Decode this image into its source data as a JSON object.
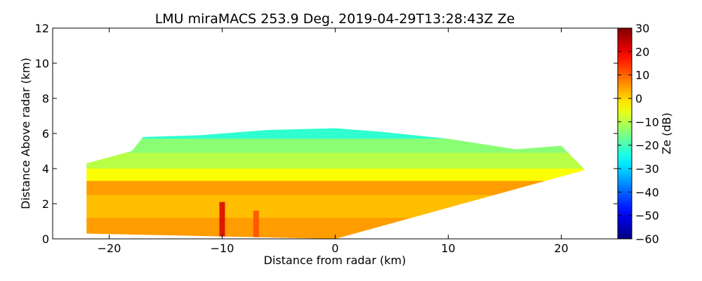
{
  "chart_data": {
    "type": "heatmap",
    "title": "LMU miraMACS 253.9 Deg. 2019-04-29T13:28:43Z  Ze",
    "xlabel": "Distance from radar (km)",
    "ylabel": "Distance Above radar  (km)",
    "xlim": [
      -25,
      25
    ],
    "ylim": [
      0,
      12
    ],
    "x_ticks": [
      -20,
      -10,
      0,
      10,
      20
    ],
    "x_tick_labels": [
      "−20",
      "−10",
      "0",
      "10",
      "20"
    ],
    "y_ticks": [
      0,
      2,
      4,
      6,
      8,
      10,
      12
    ],
    "y_tick_labels": [
      "0",
      "2",
      "4",
      "6",
      "8",
      "10",
      "12"
    ],
    "grid": false,
    "colorbar": {
      "label": "Ze (dB)",
      "colormap": "jet",
      "range": [
        -60,
        30
      ],
      "ticks": [
        30,
        20,
        10,
        0,
        -10,
        -20,
        -30,
        -40,
        -50,
        -60
      ],
      "tick_labels": [
        "30",
        "20",
        "10",
        "0",
        "−10",
        "−20",
        "−30",
        "−40",
        "−50",
        "−60"
      ]
    },
    "echo_region": {
      "x_range_km": [
        -22,
        22
      ],
      "top_height_km": [
        {
          "x": -22,
          "y": 4.3
        },
        {
          "x": -18,
          "y": 5.0
        },
        {
          "x": -17,
          "y": 5.8
        },
        {
          "x": -12,
          "y": 5.9
        },
        {
          "x": -6,
          "y": 6.2
        },
        {
          "x": 0,
          "y": 6.3
        },
        {
          "x": 4,
          "y": 6.1
        },
        {
          "x": 10,
          "y": 5.7
        },
        {
          "x": 16,
          "y": 5.1
        },
        {
          "x": 20,
          "y": 5.3
        },
        {
          "x": 22,
          "y": 4.0
        }
      ],
      "bottom_height_km": [
        {
          "x": -22,
          "y": 0.3
        },
        {
          "x": 0,
          "y": 0.0
        },
        {
          "x": 22,
          "y": 3.9
        }
      ],
      "layers": [
        {
          "y_from": 0.0,
          "y_to": 1.2,
          "value_db": 5
        },
        {
          "y_from": 1.2,
          "y_to": 2.5,
          "value_db": 2
        },
        {
          "y_from": 2.5,
          "y_to": 3.3,
          "value_db": 5
        },
        {
          "y_from": 3.3,
          "y_to": 4.0,
          "value_db": -4
        },
        {
          "y_from": 4.0,
          "y_to": 4.9,
          "value_db": -10
        },
        {
          "y_from": 4.9,
          "y_to": 5.7,
          "value_db": -14
        },
        {
          "y_from": 5.7,
          "y_to": 6.3,
          "value_db": -22
        }
      ],
      "features": [
        {
          "x": -10,
          "y_from": 0,
          "y_to": 2.1,
          "value_db": 22
        },
        {
          "x": -7,
          "y_from": 0,
          "y_to": 1.6,
          "value_db": 12
        }
      ]
    }
  }
}
